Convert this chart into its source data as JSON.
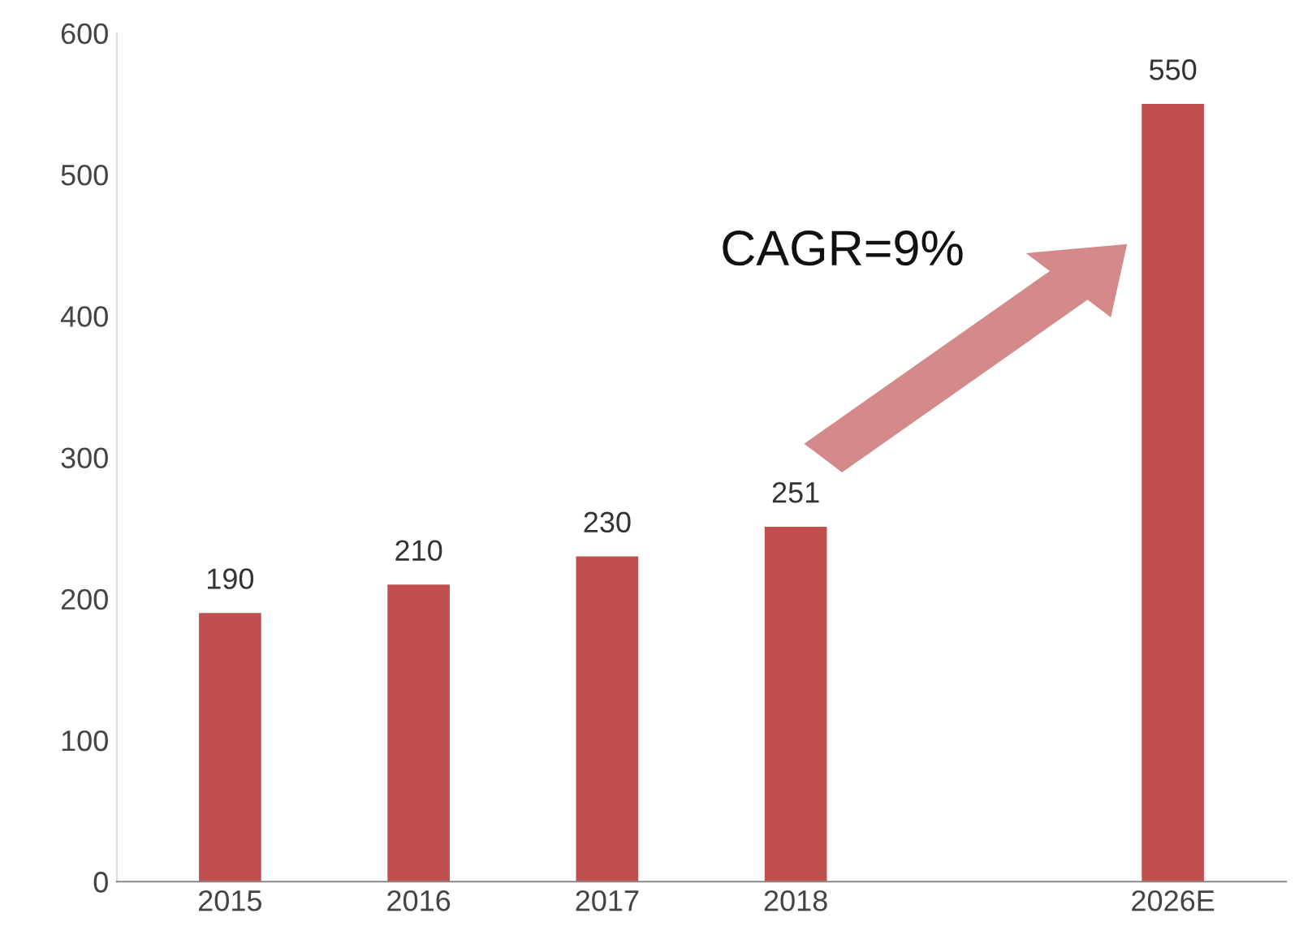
{
  "chart_data": {
    "type": "bar",
    "categories": [
      "2015",
      "2016",
      "2017",
      "2018",
      null,
      "2026E"
    ],
    "values": [
      190,
      210,
      230,
      251,
      null,
      550
    ],
    "color": "#c0504d",
    "data_labels": true,
    "ylim": [
      0,
      600
    ],
    "yticks": [
      0,
      100,
      200,
      300,
      400,
      500,
      600
    ],
    "grid": false,
    "annotations": [
      "CAGR=9%"
    ]
  }
}
